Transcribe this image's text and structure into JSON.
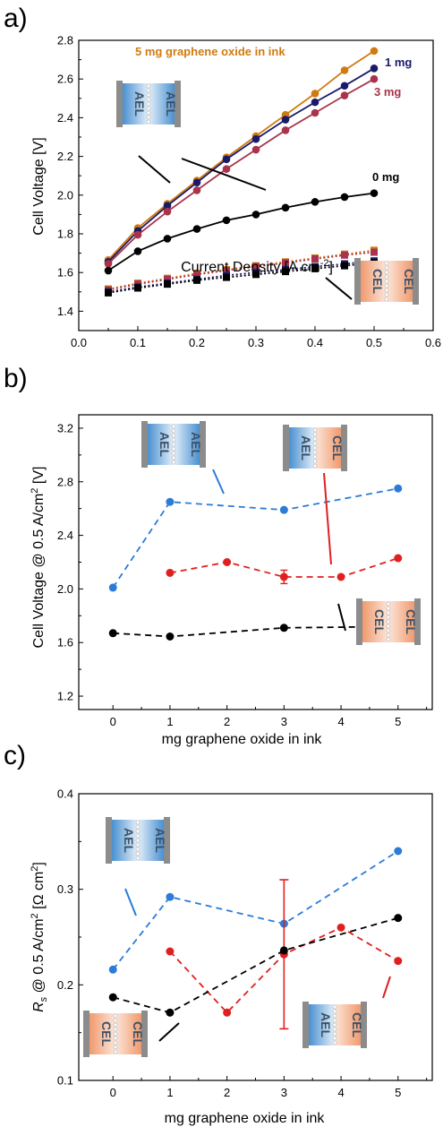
{
  "colors": {
    "orange": "#D17A0F",
    "navy": "#1A1A6B",
    "crimson": "#A8334A",
    "black": "#000000",
    "blue": "#2B7BD9",
    "red": "#E02020",
    "ael_fill": "#5A9FD8",
    "cel_fill": "#F2A27A",
    "electrode": "#8C8C8C",
    "layer_text": "#3D5166"
  },
  "chart_data": [
    {
      "panel": "a)",
      "type": "line",
      "xlabel": "Current Density [A cm",
      "xlabel_sup": "-2",
      "xlabel_end": "]",
      "ylabel": "Cell Voltage [V]",
      "xlim": [
        0.0,
        0.6
      ],
      "ylim": [
        1.3,
        2.8
      ],
      "xticks": [
        "0.0",
        "0.1",
        "0.2",
        "0.3",
        "0.4",
        "0.5",
        "0.6"
      ],
      "yticks": [
        "1.4",
        "1.6",
        "1.8",
        "2.0",
        "2.2",
        "2.4",
        "2.6",
        "2.8"
      ],
      "x": [
        0.05,
        0.1,
        0.15,
        0.2,
        0.25,
        0.3,
        0.35,
        0.4,
        0.45,
        0.5
      ],
      "series": [
        {
          "name": "5 mg graphene oxide in ink",
          "color": "orange",
          "marker": "circle",
          "style": "solid",
          "values": [
            1.665,
            1.83,
            1.955,
            2.075,
            2.195,
            2.305,
            2.415,
            2.525,
            2.645,
            2.745
          ]
        },
        {
          "name": "1 mg",
          "color": "navy",
          "marker": "circle",
          "style": "solid",
          "values": [
            1.655,
            1.815,
            1.945,
            2.065,
            2.185,
            2.29,
            2.39,
            2.48,
            2.565,
            2.655
          ]
        },
        {
          "name": "3 mg",
          "color": "crimson",
          "marker": "circle",
          "style": "solid",
          "values": [
            1.645,
            1.795,
            1.915,
            2.025,
            2.135,
            2.235,
            2.335,
            2.425,
            2.515,
            2.6
          ]
        },
        {
          "name": "0 mg",
          "color": "black",
          "marker": "circle",
          "style": "solid",
          "values": [
            1.61,
            1.71,
            1.775,
            1.825,
            1.87,
            1.9,
            1.935,
            1.965,
            1.99,
            2.01
          ]
        },
        {
          "name": "",
          "color": "orange",
          "marker": "square",
          "style": "dotted",
          "values": [
            1.515,
            1.545,
            1.57,
            1.595,
            1.615,
            1.635,
            1.655,
            1.675,
            1.695,
            1.715
          ]
        },
        {
          "name": "",
          "color": "crimson",
          "marker": "square",
          "style": "dotted",
          "values": [
            1.51,
            1.54,
            1.565,
            1.59,
            1.61,
            1.63,
            1.65,
            1.67,
            1.69,
            1.705
          ]
        },
        {
          "name": "",
          "color": "navy",
          "marker": "square",
          "style": "dotted",
          "values": [
            1.5,
            1.525,
            1.545,
            1.565,
            1.585,
            1.6,
            1.615,
            1.63,
            1.645,
            1.66
          ]
        },
        {
          "name": "",
          "color": "black",
          "marker": "square",
          "style": "dotted",
          "values": [
            1.495,
            1.52,
            1.54,
            1.56,
            1.575,
            1.59,
            1.605,
            1.62,
            1.635,
            1.65
          ]
        }
      ],
      "schematics": [
        {
          "left": "AEL",
          "right": "AEL"
        },
        {
          "left": "CEL",
          "right": "CEL"
        }
      ]
    },
    {
      "panel": "b)",
      "type": "line",
      "xlabel": "mg graphene oxide in ink",
      "ylabel": "Cell Voltage @ 0.5 A/cm",
      "ylabel_sup": "2",
      "ylabel_end": " [V]",
      "xlim": [
        -0.6,
        5.6
      ],
      "ylim": [
        1.1,
        3.3
      ],
      "xticks": [
        "0",
        "1",
        "2",
        "3",
        "4",
        "5"
      ],
      "yticks": [
        "1.2",
        "1.6",
        "2.0",
        "2.4",
        "2.8",
        "3.2"
      ],
      "series": [
        {
          "name": "AEL-AEL",
          "color": "blue",
          "style": "dashed",
          "x": [
            0,
            1,
            3,
            5
          ],
          "values": [
            2.01,
            2.65,
            2.59,
            2.75
          ]
        },
        {
          "name": "AEL-CEL",
          "color": "red",
          "style": "dashed",
          "x": [
            1,
            2,
            3,
            4,
            5
          ],
          "values": [
            2.12,
            2.2,
            2.09,
            2.09,
            2.23
          ],
          "errors": [
            0,
            0,
            0.05,
            0,
            0
          ]
        },
        {
          "name": "CEL-CEL",
          "color": "black",
          "style": "dashed",
          "x": [
            0,
            1,
            3,
            5
          ],
          "values": [
            1.67,
            1.645,
            1.71,
            1.72
          ]
        }
      ],
      "schematics": [
        {
          "left": "AEL",
          "right": "AEL"
        },
        {
          "left": "AEL",
          "right": "CEL"
        },
        {
          "left": "CEL",
          "right": "CEL"
        }
      ]
    },
    {
      "panel": "c)",
      "type": "line",
      "xlabel": "mg graphene oxide in ink",
      "ylabel_italic": "R",
      "ylabel_sub": "s",
      "ylabel": " @ 0.5 A/cm",
      "ylabel_sup": "2",
      "ylabel_end": " [Ω cm",
      "ylabel_sup2": "2",
      "ylabel_end2": "]",
      "xlim": [
        -0.6,
        5.6
      ],
      "ylim": [
        0.1,
        0.4
      ],
      "xticks": [
        "0",
        "1",
        "2",
        "3",
        "4",
        "5"
      ],
      "yticks": [
        "0.1",
        "0.2",
        "0.3",
        "0.4"
      ],
      "series": [
        {
          "name": "AEL-AEL",
          "color": "blue",
          "style": "dashed",
          "x": [
            0,
            1,
            3,
            5
          ],
          "values": [
            0.216,
            0.292,
            0.264,
            0.34
          ]
        },
        {
          "name": "AEL-CEL",
          "color": "red",
          "style": "dashed",
          "x": [
            1,
            2,
            3,
            4,
            5
          ],
          "values": [
            0.235,
            0.171,
            0.232,
            0.26,
            0.225
          ],
          "errors": [
            0,
            0,
            0.078,
            0,
            0
          ]
        },
        {
          "name": "CEL-CEL",
          "color": "black",
          "style": "dashed",
          "x": [
            0,
            1,
            3,
            5
          ],
          "values": [
            0.187,
            0.171,
            0.236,
            0.27
          ]
        }
      ],
      "schematics": [
        {
          "left": "AEL",
          "right": "AEL"
        },
        {
          "left": "CEL",
          "right": "CEL"
        },
        {
          "left": "AEL",
          "right": "CEL"
        }
      ]
    }
  ]
}
